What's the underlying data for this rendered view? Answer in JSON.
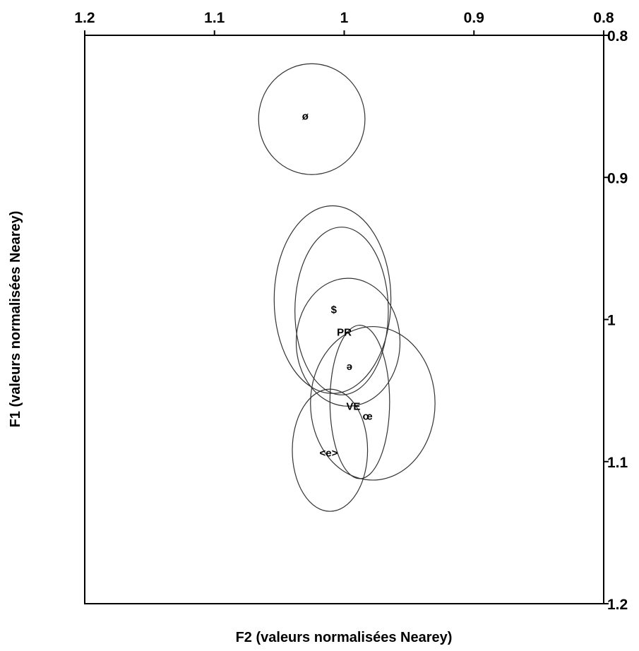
{
  "chart_data": {
    "type": "scatter",
    "title": "",
    "xlabel": "F2 (valeurs normalisées Nearey)",
    "ylabel": "F1 (valeurs normalisées Nearey)",
    "xlim": [
      1.2,
      0.8
    ],
    "ylim": [
      0.8,
      1.2
    ],
    "x_reversed": true,
    "y_reversed": true,
    "x_ticks": [
      "1.2",
      "1.1",
      "1",
      "0.9",
      "0.8"
    ],
    "x_tick_values": [
      1.2,
      1.1,
      1.0,
      0.9,
      0.8
    ],
    "y_ticks": [
      "0.8",
      "0.9",
      "1",
      "1.1",
      "1.2"
    ],
    "y_tick_values": [
      0.8,
      0.9,
      1.0,
      1.1,
      1.2
    ],
    "x_axis_position": "top",
    "y_axis_position": "right",
    "grid": false,
    "points": [
      {
        "label": "ø",
        "f2": 1.03,
        "f1": 0.857
      },
      {
        "label": "$",
        "f2": 1.008,
        "f1": 0.993
      },
      {
        "label": "PR",
        "f2": 1.0,
        "f1": 1.009
      },
      {
        "label": "ə",
        "f2": 0.996,
        "f1": 1.033
      },
      {
        "label": "VE",
        "f2": 0.993,
        "f1": 1.061
      },
      {
        "label": "œ",
        "f2": 0.982,
        "f1": 1.068
      },
      {
        "label": "<e>",
        "f2": 1.012,
        "f1": 1.094
      }
    ],
    "ellipses": [
      {
        "cf2": 1.025,
        "cf1": 0.859,
        "rf2": 0.041,
        "rf1": 0.039
      },
      {
        "cf2": 1.009,
        "cf1": 0.986,
        "rf2": 0.045,
        "rf1": 0.066
      },
      {
        "cf2": 1.002,
        "cf1": 0.994,
        "rf2": 0.036,
        "rf1": 0.059
      },
      {
        "cf2": 0.997,
        "cf1": 1.016,
        "rf2": 0.04,
        "rf1": 0.045
      },
      {
        "cf2": 0.988,
        "cf1": 1.058,
        "rf2": 0.023,
        "rf1": 0.054
      },
      {
        "cf2": 0.978,
        "cf1": 1.059,
        "rf2": 0.048,
        "rf1": 0.054
      },
      {
        "cf2": 1.011,
        "cf1": 1.092,
        "rf2": 0.029,
        "rf1": 0.043
      }
    ]
  }
}
